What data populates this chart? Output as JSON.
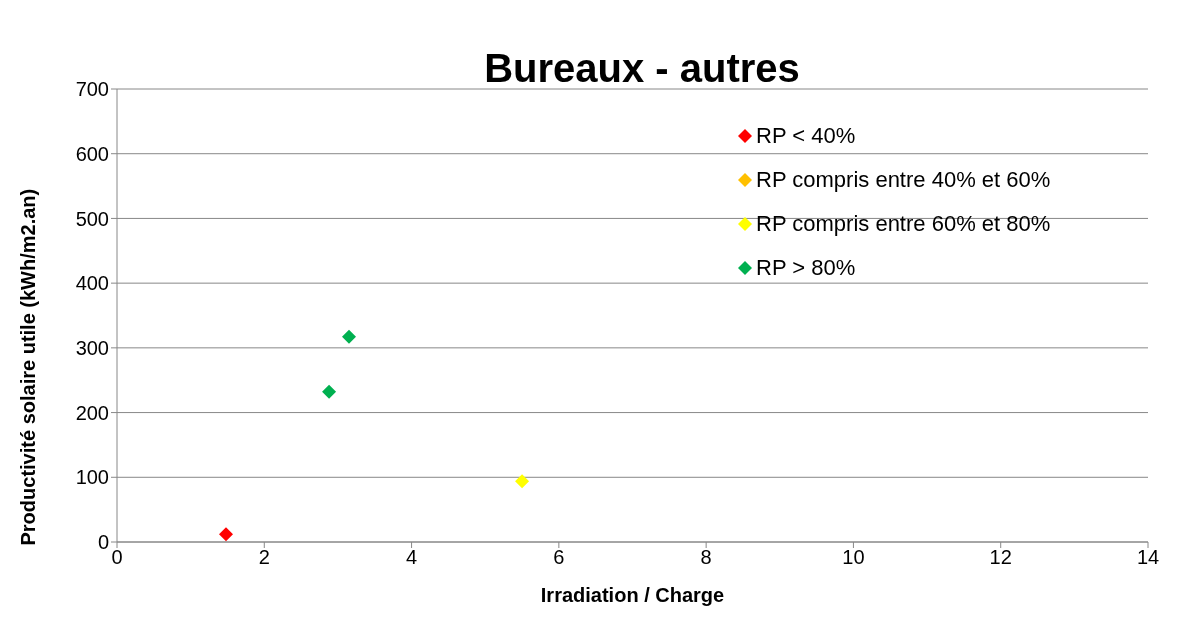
{
  "chart_data": {
    "type": "scatter",
    "title": "Bureaux - autres",
    "xlabel": "Irradiation / Charge",
    "ylabel": "Productivité solaire utile (kWh/m2.an)",
    "xlim": [
      0,
      14
    ],
    "xticks": [
      0,
      2,
      4,
      6,
      8,
      10,
      12,
      14
    ],
    "ylim": [
      0,
      700
    ],
    "yticks": [
      0,
      100,
      200,
      300,
      400,
      500,
      600,
      700
    ],
    "grid": "y",
    "legend": "top right",
    "marker": "diamond",
    "series": [
      {
        "name": "RP < 40%",
        "color": "#ff0000",
        "x": [
          1.48
        ],
        "values": [
          12
        ]
      },
      {
        "name": "RP compris entre 40% et 60%",
        "color": "#ffc000"
      },
      {
        "name": "RP compris entre 60% et 80%",
        "color": "#ffff00",
        "x": [
          5.5
        ],
        "values": [
          94
        ]
      },
      {
        "name": "RP > 80%",
        "color": "#00b050",
        "x": [
          2.88,
          3.15
        ],
        "values": [
          232,
          317
        ]
      }
    ]
  }
}
